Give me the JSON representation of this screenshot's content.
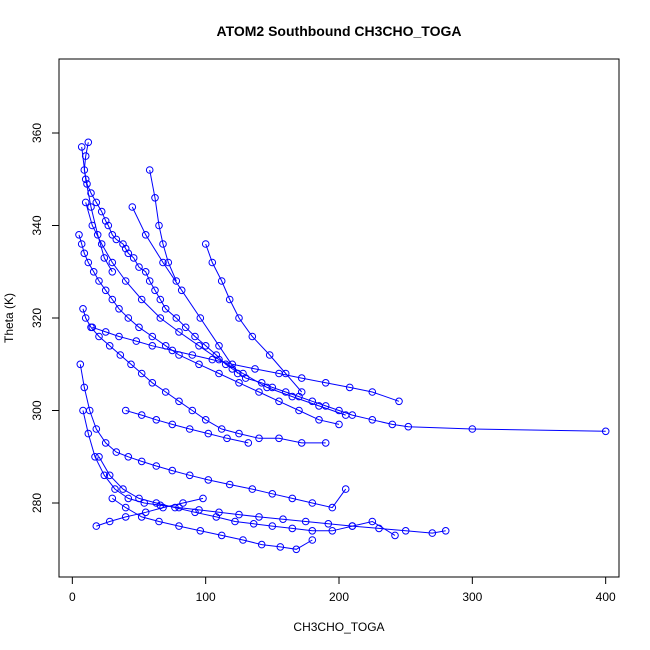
{
  "chart_data": {
    "type": "line",
    "title": "ATOM2 Southbound CH3CHO_TOGA",
    "xlabel": "CH3CHO_TOGA",
    "ylabel": "Theta (K)",
    "xlim": [
      -10,
      410
    ],
    "ylim": [
      264,
      376
    ],
    "x_ticks": [
      0,
      100,
      200,
      300,
      400
    ],
    "y_ticks": [
      280,
      300,
      320,
      340,
      360
    ],
    "grid": false,
    "legend": "none",
    "marker": "open-circle",
    "color": "#0000ff",
    "series": [
      {
        "x": [
          12,
          10,
          9,
          11,
          14,
          18,
          22,
          25,
          27,
          30,
          33,
          38,
          40,
          42,
          46,
          50,
          55,
          58,
          62,
          66,
          70,
          78,
          85,
          92,
          100,
          108,
          115,
          120,
          130,
          142,
          150,
          160,
          170,
          180,
          190,
          200,
          210,
          225,
          240,
          252,
          300,
          400
        ],
        "y": [
          358,
          355,
          352,
          349,
          347,
          345,
          343,
          341,
          340,
          338,
          337,
          336,
          335,
          334,
          333,
          331,
          330,
          328,
          326,
          324,
          322,
          320,
          318,
          316,
          314,
          312,
          310,
          309,
          307,
          306,
          305,
          304,
          303,
          302,
          301,
          300,
          299,
          298,
          297,
          296.5,
          296,
          295.5
        ]
      },
      {
        "x": [
          5,
          7,
          9,
          12,
          16,
          20,
          25,
          30,
          35,
          42,
          50,
          60,
          70,
          80,
          95,
          110,
          125,
          140,
          155,
          170,
          185,
          200
        ],
        "y": [
          338,
          336,
          334,
          332,
          330,
          328,
          326,
          324,
          322,
          320,
          318,
          316,
          314,
          312,
          310,
          308,
          306,
          304,
          302,
          300,
          298,
          297
        ]
      },
      {
        "x": [
          8,
          10,
          14,
          20,
          28,
          36,
          44,
          52,
          60,
          70,
          80,
          90,
          100,
          112,
          125,
          140,
          155,
          172,
          190
        ],
        "y": [
          322,
          320,
          318,
          316,
          314,
          312,
          310,
          308,
          306,
          304,
          302,
          300,
          298,
          296,
          295,
          294,
          294,
          293,
          293
        ]
      },
      {
        "x": [
          6,
          9,
          13,
          18,
          25,
          33,
          42,
          52,
          63,
          75,
          88,
          102,
          118,
          135,
          150,
          165,
          180,
          195,
          205
        ],
        "y": [
          310,
          305,
          300,
          296,
          293,
          291,
          290,
          289,
          288,
          287,
          286,
          285,
          284,
          283,
          282,
          281,
          280,
          279,
          283
        ]
      },
      {
        "x": [
          8,
          12,
          17,
          24,
          32,
          42,
          54,
          66,
          80,
          95,
          110,
          125,
          140,
          158,
          175,
          192,
          210,
          230,
          250,
          270,
          280
        ],
        "y": [
          300,
          295,
          290,
          286,
          283,
          281,
          280,
          279.5,
          279,
          278.5,
          278,
          277.5,
          277,
          276.5,
          276,
          275.5,
          275,
          274.5,
          274,
          273.5,
          274
        ]
      },
      {
        "x": [
          20,
          28,
          38,
          50,
          63,
          77,
          92,
          108,
          122,
          136,
          150,
          165,
          180,
          195,
          210,
          225,
          242
        ],
        "y": [
          290,
          286,
          283,
          281,
          280,
          279,
          278,
          277,
          276,
          275.5,
          275,
          274.5,
          274,
          274,
          275,
          276,
          273
        ]
      },
      {
        "x": [
          30,
          40,
          52,
          65,
          80,
          96,
          112,
          128,
          142,
          156,
          168,
          180
        ],
        "y": [
          281,
          279,
          277,
          276,
          275,
          274,
          273,
          272,
          271,
          270.5,
          270,
          272
        ]
      },
      {
        "x": [
          10,
          15,
          22,
          30,
          40,
          52,
          66,
          80,
          95,
          110,
          128,
          146,
          165,
          185,
          205
        ],
        "y": [
          345,
          340,
          336,
          332,
          328,
          324,
          320,
          317,
          314,
          311,
          308,
          305,
          303,
          301,
          299
        ]
      },
      {
        "x": [
          15,
          25,
          35,
          48,
          60,
          75,
          90,
          105,
          120,
          137,
          155,
          172,
          190,
          208,
          225,
          245
        ],
        "y": [
          318,
          317,
          316,
          315,
          314,
          313,
          312,
          311,
          310,
          309,
          308,
          307,
          306,
          305,
          304,
          302
        ]
      },
      {
        "x": [
          40,
          52,
          63,
          75,
          88,
          102,
          116,
          132
        ],
        "y": [
          300,
          299,
          298,
          297,
          296,
          295,
          294,
          293
        ]
      },
      {
        "x": [
          18,
          28,
          40,
          55,
          68,
          83,
          98
        ],
        "y": [
          275,
          276,
          277,
          278,
          279,
          280,
          281
        ]
      },
      {
        "x": [
          58,
          62,
          65,
          68,
          72,
          78
        ],
        "y": [
          352,
          346,
          340,
          336,
          332,
          328
        ]
      },
      {
        "x": [
          100,
          105,
          112,
          118,
          125,
          135,
          148,
          160,
          172
        ],
        "y": [
          336,
          332,
          328,
          324,
          320,
          316,
          312,
          308,
          304
        ]
      },
      {
        "x": [
          45,
          55,
          68,
          82,
          96,
          110,
          124
        ],
        "y": [
          344,
          338,
          332,
          326,
          320,
          314,
          308
        ]
      },
      {
        "x": [
          7,
          10,
          14,
          19,
          24,
          30
        ],
        "y": [
          357,
          350,
          344,
          338,
          333,
          330
        ]
      }
    ]
  }
}
